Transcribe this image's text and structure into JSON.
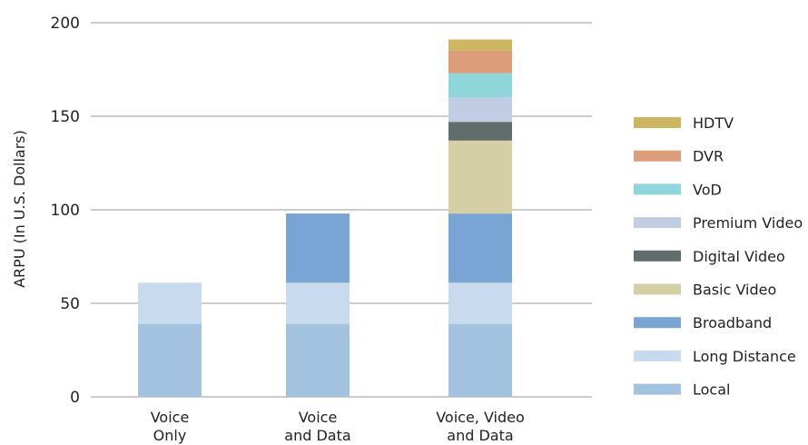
{
  "chart_data": {
    "type": "bar",
    "stacked": true,
    "title": "",
    "xlabel": "",
    "ylabel": "ARPU (In U.S. Dollars)",
    "ylim": [
      0,
      200
    ],
    "yticks": [
      0,
      50,
      100,
      150,
      200
    ],
    "grid": true,
    "legend_position": "right",
    "categories": [
      [
        "Voice",
        "Only"
      ],
      [
        "Voice",
        "and Data"
      ],
      [
        "Voice, Video",
        "and Data"
      ]
    ],
    "series": [
      {
        "name": "Local",
        "color": "#a3c2e0",
        "values": [
          39,
          39,
          39
        ]
      },
      {
        "name": "Long Distance",
        "color": "#c8dbee",
        "values": [
          22,
          22,
          22
        ]
      },
      {
        "name": "Broadband",
        "color": "#78a5d3",
        "values": [
          0,
          37,
          37
        ]
      },
      {
        "name": "Basic Video",
        "color": "#d5cfa6",
        "values": [
          0,
          0,
          39
        ]
      },
      {
        "name": "Digital Video",
        "color": "#606d6c",
        "values": [
          0,
          0,
          10
        ]
      },
      {
        "name": "Premium Video",
        "color": "#c0cde2",
        "values": [
          0,
          0,
          13
        ]
      },
      {
        "name": "VoD",
        "color": "#8fd6da",
        "values": [
          0,
          0,
          13
        ]
      },
      {
        "name": "DVR",
        "color": "#dc9d7a",
        "values": [
          0,
          0,
          12
        ]
      },
      {
        "name": "HDTV",
        "color": "#cdb561",
        "values": [
          0,
          0,
          6
        ]
      }
    ]
  }
}
